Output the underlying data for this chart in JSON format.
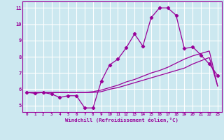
{
  "xlabel": "Windchill (Refroidissement éolien,°C)",
  "background_color": "#cce8f0",
  "line_color": "#990099",
  "grid_color": "#ffffff",
  "xlim": [
    -0.5,
    23.5
  ],
  "ylim": [
    4.6,
    11.4
  ],
  "yticks": [
    5,
    6,
    7,
    8,
    9,
    10,
    11
  ],
  "xticks": [
    0,
    1,
    2,
    3,
    4,
    5,
    6,
    7,
    8,
    9,
    10,
    11,
    12,
    13,
    14,
    15,
    16,
    17,
    18,
    19,
    20,
    21,
    22,
    23
  ],
  "series1_x": [
    0,
    1,
    2,
    3,
    4,
    5,
    6,
    7,
    8,
    9,
    10,
    11,
    12,
    13,
    14,
    15,
    16,
    17,
    18,
    19,
    20,
    21,
    22,
    23
  ],
  "series1_y": [
    5.8,
    5.75,
    5.8,
    5.7,
    5.5,
    5.6,
    5.6,
    4.85,
    4.85,
    6.5,
    7.5,
    7.85,
    8.55,
    9.4,
    8.65,
    10.4,
    11.0,
    11.0,
    10.55,
    8.5,
    8.6,
    8.1,
    7.55,
    6.85
  ],
  "series2_x": [
    0,
    1,
    2,
    3,
    4,
    5,
    6,
    7,
    8,
    9,
    10,
    11,
    12,
    13,
    14,
    15,
    16,
    17,
    18,
    19,
    20,
    21,
    22,
    23
  ],
  "series2_y": [
    5.8,
    5.8,
    5.8,
    5.8,
    5.8,
    5.8,
    5.8,
    5.8,
    5.8,
    5.85,
    6.0,
    6.1,
    6.25,
    6.4,
    6.55,
    6.7,
    6.85,
    7.0,
    7.15,
    7.3,
    7.55,
    7.75,
    7.95,
    6.2
  ],
  "series3_x": [
    0,
    1,
    2,
    3,
    4,
    5,
    6,
    7,
    8,
    9,
    10,
    11,
    12,
    13,
    14,
    15,
    16,
    17,
    18,
    19,
    20,
    21,
    22,
    23
  ],
  "series3_y": [
    5.8,
    5.8,
    5.8,
    5.8,
    5.8,
    5.8,
    5.8,
    5.8,
    5.85,
    5.95,
    6.1,
    6.25,
    6.45,
    6.6,
    6.8,
    7.0,
    7.15,
    7.35,
    7.6,
    7.85,
    8.05,
    8.2,
    8.35,
    6.2
  ]
}
